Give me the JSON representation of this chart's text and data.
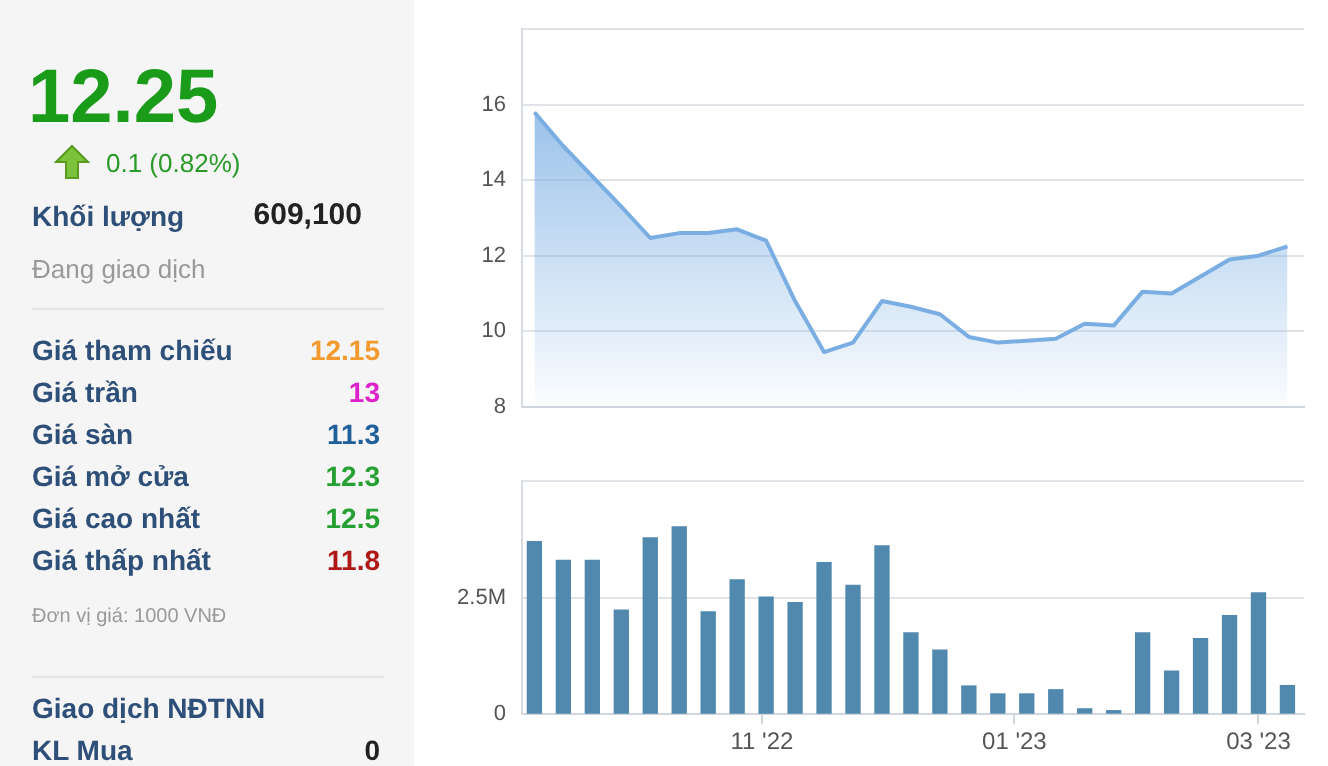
{
  "chart_data": [
    {
      "type": "other",
      "title": "12.25",
      "subtitle": "0.1 (0.82%)",
      "annotations": [
        "Khối lượng",
        "609,100",
        "Đang giao dịch",
        "Giá tham chiếu",
        "12.15",
        "Giá trần",
        "13",
        "Giá sàn",
        "11.3",
        "Giá mở cửa",
        "12.3",
        "Giá cao nhất",
        "12.5",
        "Giá thấp nhất",
        "11.8",
        "Đơn vị giá: 1000 VNĐ",
        "Giao dịch NĐTNN",
        "KL Mua",
        "0"
      ]
    },
    {
      "type": "area",
      "color": "#7aaee3",
      "grid": "y",
      "tick_labels": "y",
      "xlim": [
        "2022-09-04",
        "2023-03-12"
      ],
      "ylim": [
        8,
        18
      ],
      "yticks": [
        8,
        10,
        12,
        14,
        16,
        {
          "value": 18,
          "label": null
        }
      ],
      "x": [
        "2022-09-07",
        "2022-09-14",
        "2022-09-21",
        "2022-09-28",
        "2022-10-05",
        "2022-10-12",
        "2022-10-19",
        "2022-10-26",
        "2022-11-02",
        "2022-11-09",
        "2022-11-16",
        "2022-11-23",
        "2022-11-30",
        "2022-12-07",
        "2022-12-14",
        "2022-12-21",
        "2022-12-28",
        "2023-01-04",
        "2023-01-11",
        "2023-01-18",
        "2023-01-25",
        "2023-02-01",
        "2023-02-08",
        "2023-02-15",
        "2023-02-22",
        "2023-03-01",
        "2023-03-08"
      ],
      "values": [
        15.8,
        14.9,
        14.1,
        13.3,
        12.47,
        12.6,
        12.6,
        12.7,
        12.4,
        10.8,
        9.45,
        9.7,
        10.8,
        10.65,
        10.45,
        9.85,
        9.7,
        9.75,
        9.8,
        10.2,
        10.15,
        11.05,
        11.0,
        11.45,
        11.9,
        12.0,
        12.25
      ]
    },
    {
      "type": "bar",
      "color": "#5089ad",
      "grid": "y",
      "xlim": [
        "2022-09-04",
        "2023-03-12"
      ],
      "xticks": [
        {
          "value": "2022-11-01",
          "label": "11 '22"
        },
        {
          "value": "2023-01-01",
          "label": "01 '23"
        },
        {
          "value": "2023-03-01",
          "label": "03 '23"
        }
      ],
      "ylim": [
        0,
        5
      ],
      "yticks": [
        0,
        {
          "value": 2.5,
          "label": "2.5M"
        },
        {
          "value": 5,
          "label": null
        }
      ],
      "x": [
        "2022-09-07",
        "2022-09-14",
        "2022-09-21",
        "2022-09-28",
        "2022-10-05",
        "2022-10-12",
        "2022-10-19",
        "2022-10-26",
        "2022-11-02",
        "2022-11-09",
        "2022-11-16",
        "2022-11-23",
        "2022-11-30",
        "2022-12-07",
        "2022-12-14",
        "2022-12-21",
        "2022-12-28",
        "2023-01-04",
        "2023-01-11",
        "2023-01-18",
        "2023-01-25",
        "2023-02-01",
        "2023-02-08",
        "2023-02-15",
        "2023-02-22",
        "2023-03-01",
        "2023-03-08"
      ],
      "values": [
        3.7,
        3.3,
        3.3,
        2.23,
        3.78,
        4.02,
        2.19,
        2.88,
        2.51,
        2.39,
        3.25,
        2.76,
        3.61,
        1.74,
        1.37,
        0.6,
        0.43,
        0.43,
        0.52,
        0.11,
        0.07,
        1.74,
        0.92,
        1.62,
        2.11,
        2.6,
        0.61
      ]
    }
  ]
}
